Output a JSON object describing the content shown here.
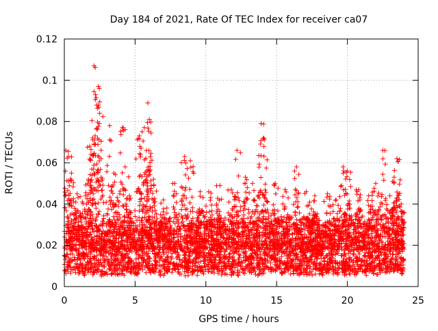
{
  "chart_data": {
    "type": "scatter",
    "title": "Day 184 of 2021, Rate Of TEC Index for receiver ca07",
    "xlabel": "GPS time / hours",
    "ylabel": "ROTI / TECUs",
    "xlim": [
      0,
      25
    ],
    "ylim": [
      0,
      0.12
    ],
    "x_ticks": [
      0,
      5,
      10,
      15,
      20,
      25
    ],
    "x_tick_labels": [
      "0",
      "5",
      "10",
      "15",
      "20",
      "25"
    ],
    "y_ticks": [
      0,
      0.02,
      0.04,
      0.06,
      0.08,
      0.1,
      0.12
    ],
    "y_tick_labels": [
      "0",
      "0.02",
      "0.04",
      "0.06",
      "0.08",
      "0.1",
      "0.12"
    ],
    "grid": true,
    "marker": "+",
    "series_color": "#ff0000",
    "x_data_range": [
      0,
      24
    ],
    "baseline_range": [
      0.005,
      0.03
    ],
    "peaks": [
      {
        "x": 0.1,
        "y": 0.066
      },
      {
        "x": 0.3,
        "y": 0.063
      },
      {
        "x": 0.5,
        "y": 0.055
      },
      {
        "x": 0.9,
        "y": 0.045
      },
      {
        "x": 1.5,
        "y": 0.044
      },
      {
        "x": 1.7,
        "y": 0.052
      },
      {
        "x": 1.8,
        "y": 0.068
      },
      {
        "x": 2.0,
        "y": 0.072
      },
      {
        "x": 2.1,
        "y": 0.107
      },
      {
        "x": 2.2,
        "y": 0.093
      },
      {
        "x": 2.4,
        "y": 0.097
      },
      {
        "x": 2.5,
        "y": 0.084
      },
      {
        "x": 2.6,
        "y": 0.062
      },
      {
        "x": 3.2,
        "y": 0.078
      },
      {
        "x": 3.5,
        "y": 0.055
      },
      {
        "x": 4.1,
        "y": 0.077
      },
      {
        "x": 4.3,
        "y": 0.058
      },
      {
        "x": 4.6,
        "y": 0.044
      },
      {
        "x": 5.3,
        "y": 0.073
      },
      {
        "x": 5.5,
        "y": 0.075
      },
      {
        "x": 5.8,
        "y": 0.066
      },
      {
        "x": 5.9,
        "y": 0.089
      },
      {
        "x": 6.0,
        "y": 0.081
      },
      {
        "x": 6.3,
        "y": 0.052
      },
      {
        "x": 7.0,
        "y": 0.042
      },
      {
        "x": 7.8,
        "y": 0.05
      },
      {
        "x": 8.5,
        "y": 0.063
      },
      {
        "x": 8.9,
        "y": 0.061
      },
      {
        "x": 9.6,
        "y": 0.046
      },
      {
        "x": 10.2,
        "y": 0.046
      },
      {
        "x": 11.0,
        "y": 0.049
      },
      {
        "x": 11.8,
        "y": 0.047
      },
      {
        "x": 12.2,
        "y": 0.066
      },
      {
        "x": 12.8,
        "y": 0.053
      },
      {
        "x": 13.3,
        "y": 0.05
      },
      {
        "x": 13.9,
        "y": 0.079
      },
      {
        "x": 14.1,
        "y": 0.072
      },
      {
        "x": 14.9,
        "y": 0.05
      },
      {
        "x": 15.6,
        "y": 0.047
      },
      {
        "x": 16.4,
        "y": 0.058
      },
      {
        "x": 17.1,
        "y": 0.046
      },
      {
        "x": 17.7,
        "y": 0.044
      },
      {
        "x": 18.6,
        "y": 0.045
      },
      {
        "x": 19.2,
        "y": 0.042
      },
      {
        "x": 19.7,
        "y": 0.058
      },
      {
        "x": 20.0,
        "y": 0.056
      },
      {
        "x": 20.8,
        "y": 0.047
      },
      {
        "x": 21.5,
        "y": 0.044
      },
      {
        "x": 22.0,
        "y": 0.05
      },
      {
        "x": 22.5,
        "y": 0.066
      },
      {
        "x": 23.0,
        "y": 0.044
      },
      {
        "x": 23.3,
        "y": 0.053
      },
      {
        "x": 23.5,
        "y": 0.062
      },
      {
        "x": 23.8,
        "y": 0.04
      }
    ]
  }
}
